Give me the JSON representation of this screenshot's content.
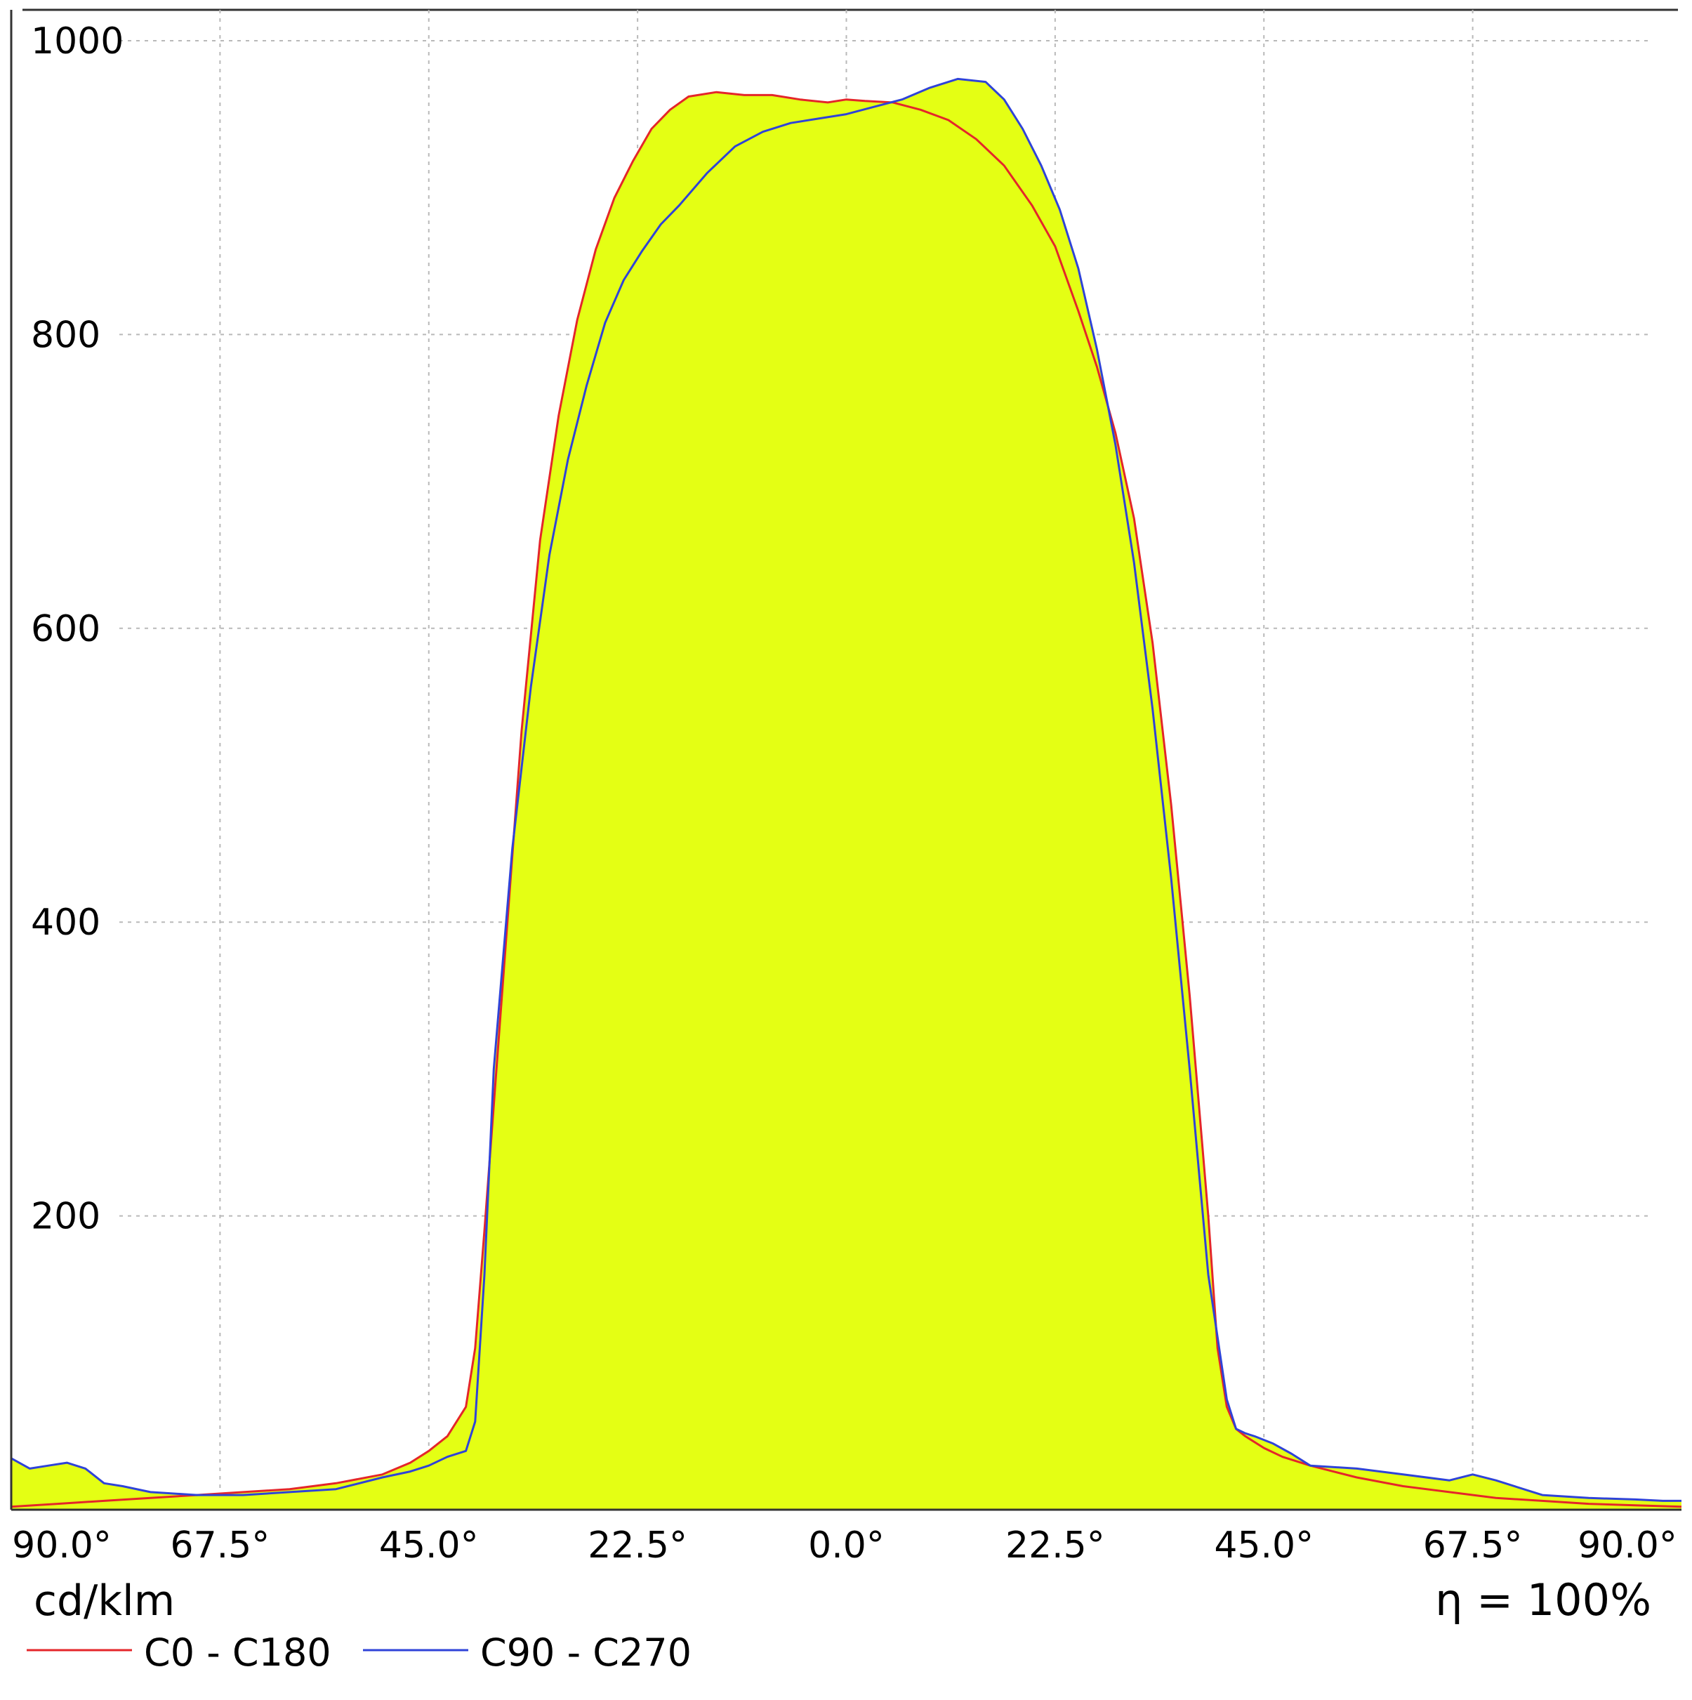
{
  "chart_data": {
    "type": "line",
    "title": "",
    "unit_label": "cd/klm",
    "efficiency_label": "η = 100%",
    "x_tick_labels": [
      "90.0°",
      "67.5°",
      "45.0°",
      "22.5°",
      "0.0°",
      "22.5°",
      "45.0°",
      "67.5°",
      "90.0°"
    ],
    "x_tick_values": [
      -90,
      -67.5,
      -45,
      -22.5,
      0,
      22.5,
      45,
      67.5,
      90
    ],
    "y_tick_labels": [
      "200",
      "400",
      "600",
      "800",
      "1000"
    ],
    "y_tick_values": [
      200,
      400,
      600,
      800,
      1000
    ],
    "xlim": [
      -90,
      90
    ],
    "ylim": [
      0,
      1000
    ],
    "grid": true,
    "legend_position": "bottom-left",
    "fill_color": "#e4ff14",
    "series": [
      {
        "name": "C0 - C180",
        "color": "#e4262a",
        "x": [
          -90,
          -85,
          -80,
          -75,
          -70,
          -65,
          -60,
          -55,
          -50,
          -47,
          -45,
          -43,
          -41,
          -40,
          -39,
          -37,
          -35,
          -33,
          -31,
          -29,
          -27,
          -25,
          -23,
          -21,
          -19,
          -17,
          -14,
          -11,
          -8,
          -5,
          -2,
          0,
          2,
          5,
          8,
          11,
          14,
          17,
          20,
          22.5,
          25,
          27,
          29,
          31,
          33,
          35,
          37,
          39,
          40,
          41,
          42,
          43,
          45,
          47,
          50,
          55,
          60,
          65,
          70,
          75,
          80,
          85,
          90
        ],
        "y": [
          2,
          4,
          6,
          8,
          10,
          12,
          14,
          18,
          24,
          32,
          40,
          50,
          70,
          110,
          190,
          360,
          530,
          660,
          745,
          810,
          858,
          893,
          918,
          940,
          953,
          962,
          965,
          963,
          963,
          960,
          958,
          960,
          959,
          958,
          953,
          946,
          933,
          915,
          888,
          860,
          816,
          778,
          733,
          675,
          590,
          480,
          350,
          200,
          110,
          70,
          55,
          50,
          42,
          36,
          30,
          22,
          16,
          12,
          8,
          6,
          4,
          3,
          2
        ]
      },
      {
        "name": "C90 - C270",
        "color": "#2f43d8",
        "x": [
          -90,
          -88,
          -86,
          -84,
          -82,
          -80,
          -78,
          -75,
          -70,
          -65,
          -60,
          -55,
          -50,
          -47,
          -45,
          -43,
          -41,
          -40,
          -39,
          -38,
          -36,
          -34,
          -32,
          -30,
          -28,
          -26,
          -24,
          -22,
          -20,
          -18,
          -15,
          -12,
          -9,
          -6,
          -3,
          0,
          3,
          6,
          9,
          12,
          15,
          17,
          19,
          21,
          23,
          25,
          27,
          29,
          31,
          33,
          35,
          37,
          39,
          41,
          42,
          43,
          44,
          46,
          48,
          50,
          55,
          60,
          65,
          67.5,
          70,
          75,
          80,
          85,
          88,
          90
        ],
        "y": [
          35,
          28,
          30,
          32,
          28,
          18,
          16,
          12,
          10,
          10,
          12,
          14,
          22,
          26,
          30,
          36,
          40,
          60,
          160,
          300,
          450,
          560,
          650,
          715,
          765,
          808,
          837,
          857,
          875,
          888,
          910,
          928,
          938,
          944,
          947,
          950,
          955,
          960,
          968,
          974,
          972,
          960,
          940,
          915,
          885,
          845,
          790,
          725,
          645,
          545,
          430,
          300,
          160,
          75,
          55,
          52,
          50,
          45,
          38,
          30,
          28,
          24,
          20,
          24,
          20,
          10,
          8,
          7,
          6,
          6
        ]
      }
    ]
  }
}
